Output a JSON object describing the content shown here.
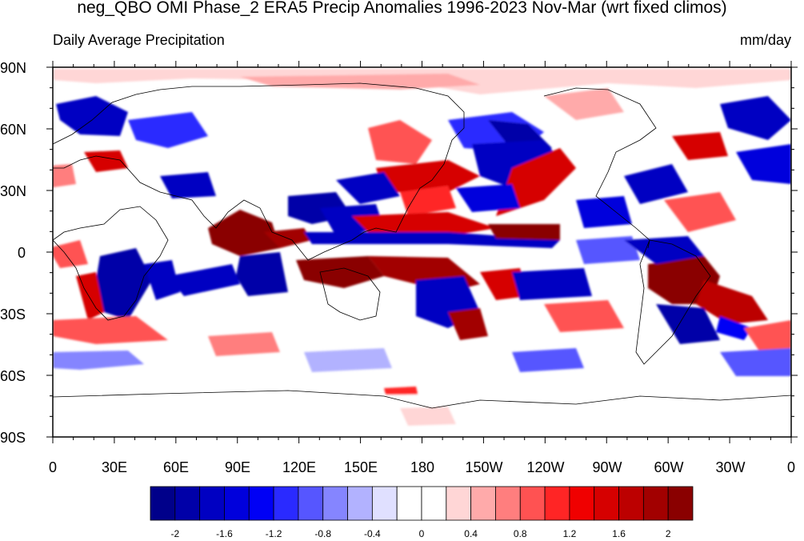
{
  "title": "neg_QBO OMI Phase_2 ERA5 Precip Anomalies 1996-2023 Nov-Mar (wrt fixed climos)",
  "subtitle_left": "Daily Average Precipitation",
  "subtitle_right": "mm/day",
  "lat_labels": [
    "90N",
    "60N",
    "30N",
    "0",
    "30S",
    "60S",
    "90S"
  ],
  "lon_labels": [
    "0",
    "30E",
    "60E",
    "90E",
    "120E",
    "150E",
    "180",
    "150W",
    "120W",
    "90W",
    "60W",
    "30W",
    "0"
  ],
  "colorbar": {
    "labels": [
      "-2",
      "-1.6",
      "-1.2",
      "-0.8",
      "-0.4",
      "0",
      "0.4",
      "0.8",
      "1.2",
      "1.6",
      "2"
    ],
    "colors": [
      "#00008a",
      "#0000a8",
      "#0000c2",
      "#0000dc",
      "#0000f5",
      "#2a2aff",
      "#5656ff",
      "#8585ff",
      "#b2b2ff",
      "#e0e0ff",
      "#ffffff",
      "#ffffff",
      "#ffd6d6",
      "#ffaaaa",
      "#ff7e7e",
      "#ff5252",
      "#ff2525",
      "#f00000",
      "#d60000",
      "#bc0000",
      "#a20000",
      "#8a0000"
    ]
  }
}
